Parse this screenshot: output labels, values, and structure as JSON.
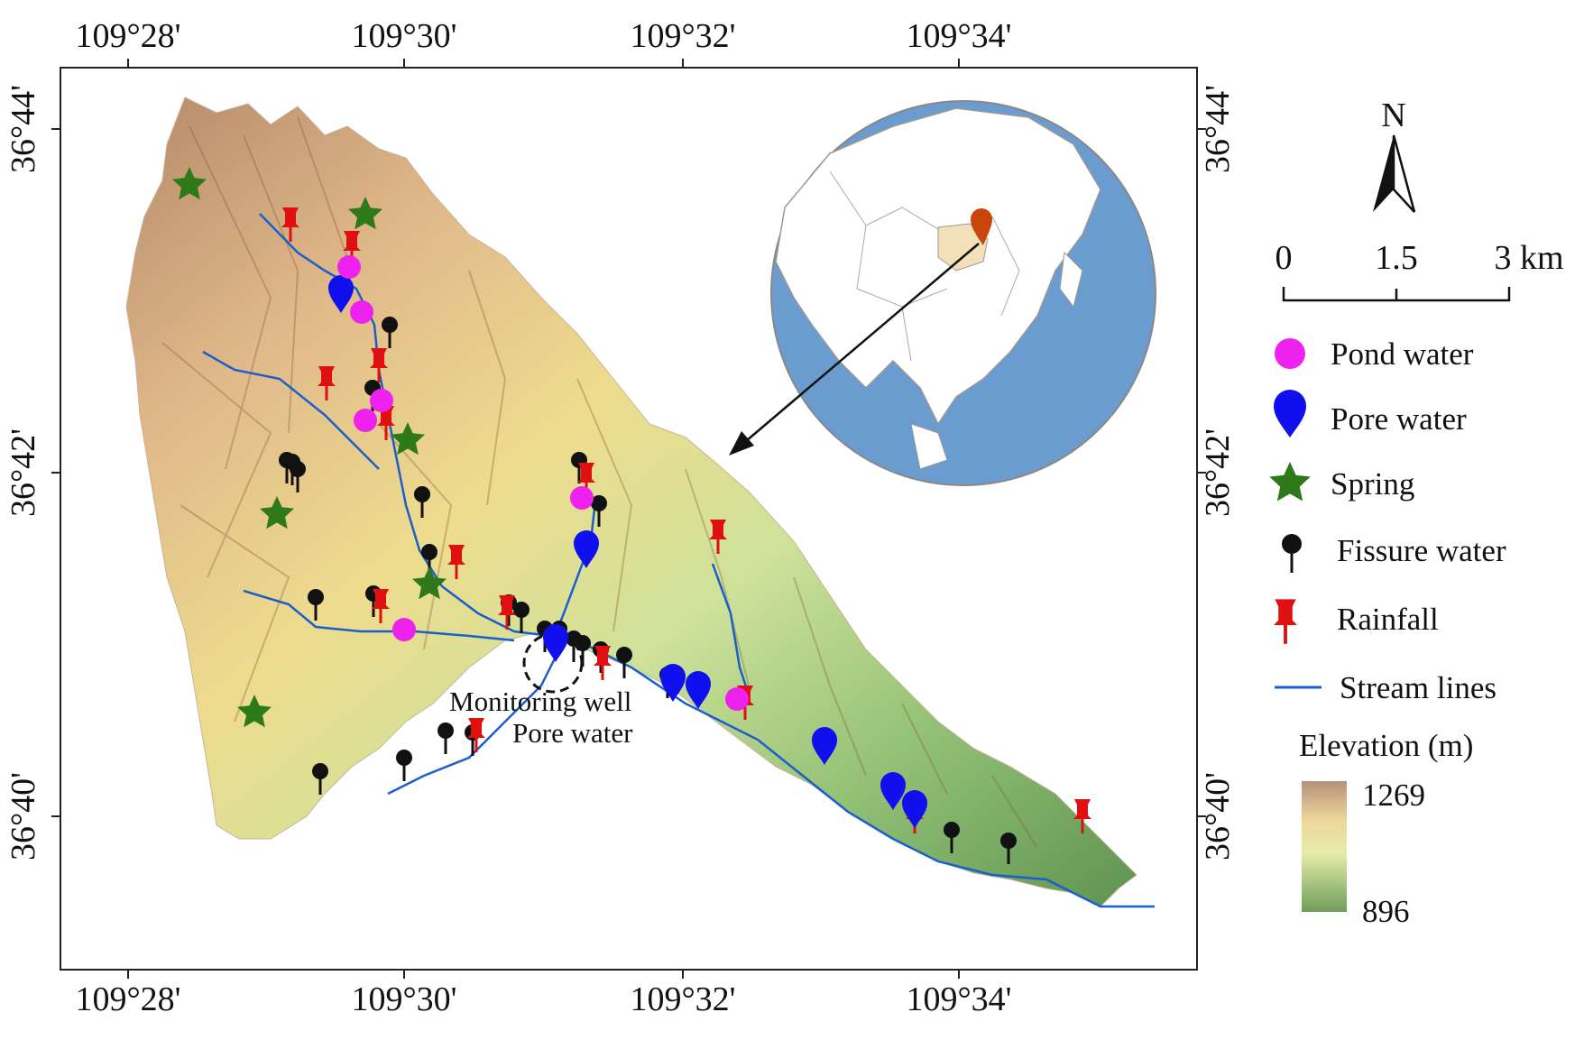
{
  "map": {
    "x_ticks": [
      "109°28'",
      "109°30'",
      "109°32'",
      "109°34'"
    ],
    "y_ticks": [
      "36°44'",
      "36°42'",
      "36°40'"
    ],
    "annotation": {
      "line1": "Monitoring well",
      "line2": "Pore water"
    }
  },
  "north_arrow": {
    "label": "N"
  },
  "scale_bar": {
    "labels": [
      "0",
      "1.5",
      "3 km"
    ]
  },
  "legend": {
    "items": [
      {
        "label": "Pond water",
        "symbol": "magenta-circle-icon",
        "color": "#ee22ee"
      },
      {
        "label": "Pore water",
        "symbol": "blue-drop-pin-icon",
        "color": "#1010ee"
      },
      {
        "label": "Spring",
        "symbol": "green-star-icon",
        "color": "#2e7a1a"
      },
      {
        "label": "Fissure water",
        "symbol": "black-pin-icon",
        "color": "#111111"
      },
      {
        "label": "Rainfall",
        "symbol": "red-pushpin-icon",
        "color": "#dd1111"
      },
      {
        "label": "Stream lines",
        "symbol": "blue-line-icon",
        "color": "#1a5fcc"
      }
    ],
    "elevation": {
      "title": "Elevation (m)",
      "max": "1269",
      "min": "896",
      "max_color": "#b8907a",
      "min_color": "#6e9e5a"
    }
  }
}
